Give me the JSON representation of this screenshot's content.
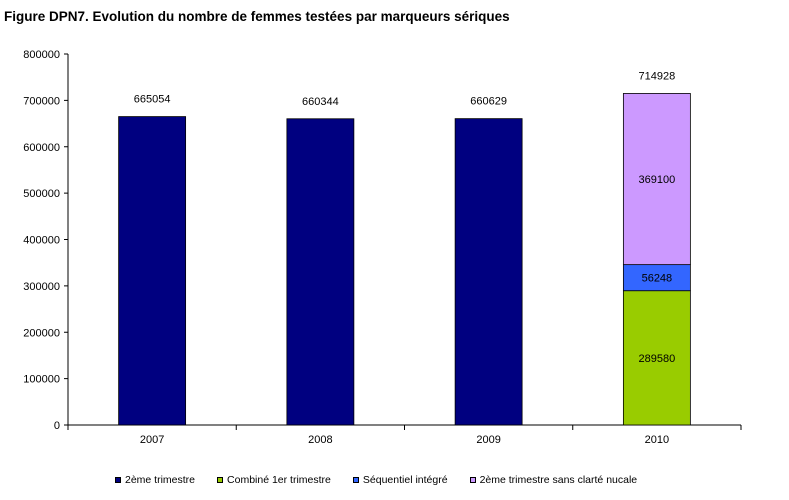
{
  "chart_data": {
    "type": "bar",
    "title": "Figure DPN7. Evolution du nombre de femmes testées par marqueurs sériques",
    "categories": [
      "2007",
      "2008",
      "2009",
      "2010"
    ],
    "ylim": [
      0,
      800000
    ],
    "yticks": [
      0,
      100000,
      200000,
      300000,
      400000,
      500000,
      600000,
      700000,
      800000
    ],
    "stacked": true,
    "series": [
      {
        "name": "2ème trimestre",
        "color": "#000080",
        "values": [
          665054,
          660344,
          660629,
          0
        ]
      },
      {
        "name": "Combiné 1er trimestre",
        "color": "#99CC00",
        "values": [
          0,
          0,
          0,
          289580
        ]
      },
      {
        "name": "Séquentiel intégré",
        "color": "#3366FF",
        "values": [
          0,
          0,
          0,
          56248
        ]
      },
      {
        "name": "2ème trimestre sans clarté nucale",
        "color": "#CC99FF",
        "values": [
          0,
          0,
          0,
          369100
        ]
      }
    ],
    "totals": [
      "665054",
      "660344",
      "660629",
      "714928"
    ],
    "segment_labels": {
      "2010": [
        "289580",
        "56248",
        "369100"
      ]
    },
    "legend_position": "bottom",
    "grid": false
  }
}
